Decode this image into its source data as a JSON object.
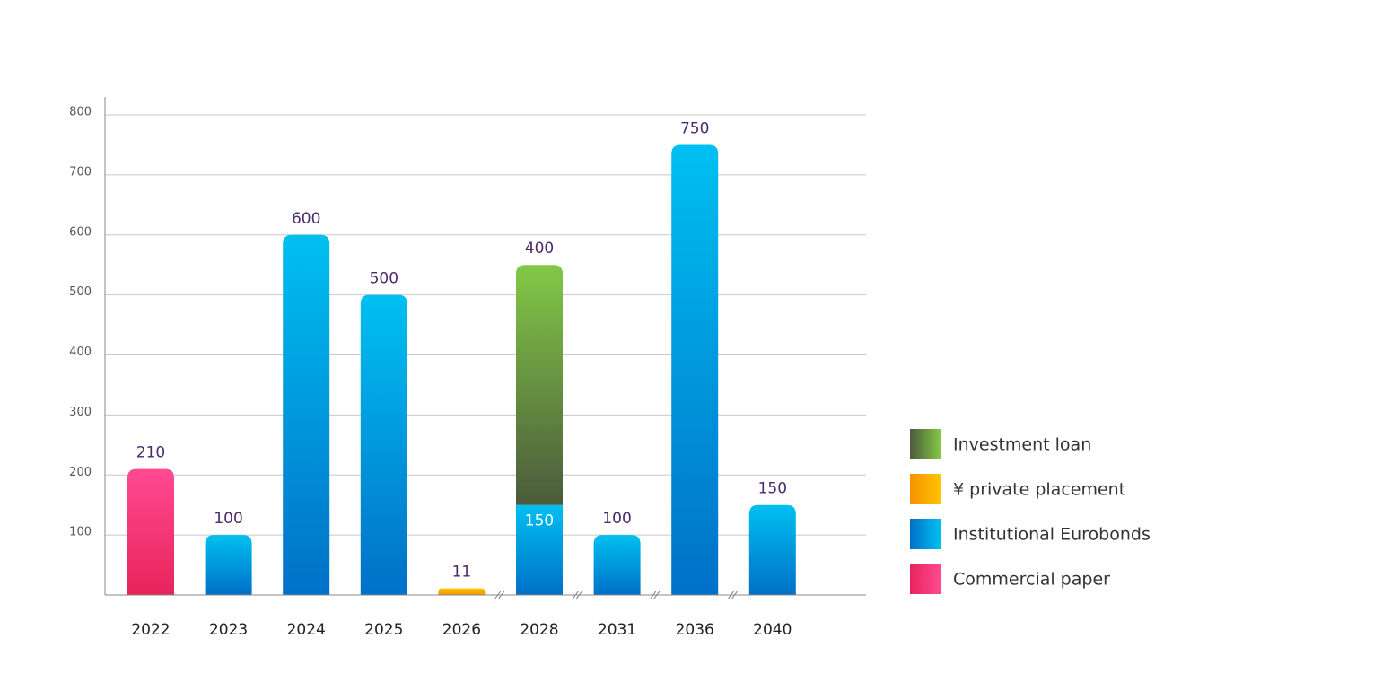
{
  "chart_data": {
    "type": "stacked_bar",
    "categories": [
      "2022",
      "2023",
      "2024",
      "2025",
      "2026",
      "2028",
      "2031",
      "2036",
      "2040"
    ],
    "series": [
      {
        "name": "Commercial paper",
        "gradient": [
          "#ff4a92",
          "#e8245a"
        ],
        "values": [
          210,
          null,
          null,
          null,
          null,
          null,
          null,
          null,
          null
        ]
      },
      {
        "name": "Institutional Eurobonds",
        "gradient": [
          "#00c0f0",
          "#0070c8"
        ],
        "values": [
          null,
          100,
          600,
          500,
          null,
          150,
          100,
          750,
          150
        ]
      },
      {
        "name": "¥ private placement",
        "gradient": [
          "#ffc400",
          "#f59200"
        ],
        "values": [
          null,
          null,
          null,
          null,
          11,
          null,
          null,
          null,
          null
        ]
      },
      {
        "name": "Investment loan",
        "gradient": [
          "#82c846",
          "#4b5a3c"
        ],
        "values": [
          null,
          null,
          null,
          null,
          null,
          400,
          null,
          null,
          null
        ]
      }
    ],
    "ylim": [
      0,
      830
    ],
    "yticks": [
      100,
      200,
      300,
      400,
      500,
      600,
      700,
      800
    ],
    "grid": true
  }
}
